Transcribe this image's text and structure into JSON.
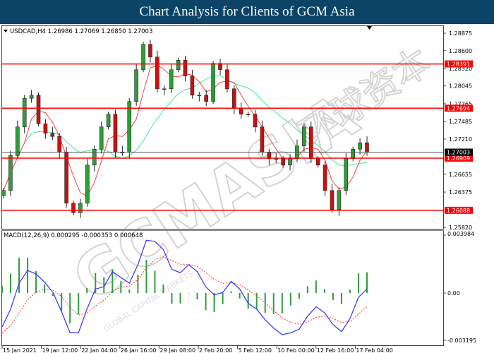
{
  "header": {
    "title": "Chart Analysis for Clients of GCM Asia"
  },
  "watermark": {
    "text": "GCMASIA",
    "subtext": "GLOBAL CAPITAL MARKETS",
    "script_text": "环球资本"
  },
  "chart_data": [
    {
      "type": "candlestick",
      "title": "USDCAD,H4",
      "ohlc_label": "1.26986 1.27069 1.26850 1.27003",
      "symbol": "USDCAD",
      "timeframe": "H4",
      "ylim": [
        1.2575,
        1.2898
      ],
      "y_ticks": [
        "1.28875",
        "1.28600",
        "1.28320",
        "1.28045",
        "1.27765",
        "1.27485",
        "1.27210",
        "1.26655",
        "1.26375",
        "1.25820"
      ],
      "x_ticks": [
        "15 Jan 2021",
        "19 Jan 12:00",
        "22 Jan 04:00",
        "26 Jan 16:00",
        "29 Jan 08:00",
        "2 Feb 20:00",
        "5 Feb 12:00",
        "10 Feb 00:00",
        "12 Feb 16:00",
        "17 Feb 04:00"
      ],
      "closes": [
        1.264,
        1.2695,
        1.274,
        1.2785,
        1.279,
        1.2745,
        1.273,
        1.2725,
        1.27,
        1.262,
        1.2605,
        1.262,
        1.268,
        1.2705,
        1.274,
        1.276,
        1.27,
        1.27,
        1.278,
        1.283,
        1.287,
        1.285,
        1.28,
        1.28,
        1.283,
        1.2845,
        1.282,
        1.279,
        1.279,
        1.278,
        1.284,
        1.283,
        1.28,
        1.277,
        1.276,
        1.276,
        1.274,
        1.27,
        1.269,
        1.269,
        1.268,
        1.269,
        1.271,
        1.274,
        1.269,
        1.268,
        1.264,
        1.261,
        1.264,
        1.269,
        1.2705,
        1.2715,
        1.27
      ],
      "current_price": {
        "value": 1.27003,
        "label": "1.27003",
        "color": "#000000"
      },
      "levels": [
        {
          "value": 1.28391,
          "label": "1.28391"
        },
        {
          "value": 1.27694,
          "label": "1.27694"
        },
        {
          "value": 1.26909,
          "label": "1.26909"
        },
        {
          "value": 1.26088,
          "label": "1.26088"
        }
      ],
      "colors": {
        "bull": "#2e9e3a",
        "bear": "#cc1010",
        "level": "#ff0000",
        "ma_fast": "#ff4040",
        "ma_slow": "#3ee890"
      }
    },
    {
      "type": "line",
      "title": "MACD(12,26,9)",
      "values_label": "0.000295 -0.000353 0.000648",
      "ylim": [
        -0.0034,
        0.0044
      ],
      "y_ticks": [
        "0.003984",
        "0.00",
        "-0.003195"
      ],
      "macd": [
        -0.00229,
        -0.00109,
        0.00067,
        0.00155,
        0.00131,
        0.00075,
        3e-05,
        -0.00125,
        -0.00269,
        -0.00269,
        -0.00109,
        0.00027,
        0.00043,
        0.00147,
        0.00107,
        0.00067,
        0.00195,
        0.00363,
        0.00355,
        0.00299,
        0.00163,
        0.00139,
        0.00195,
        0.00147,
        0.00043,
        -0.00013,
        3e-05,
        0.0008,
        0.00027,
        -0.00069,
        -0.00109,
        -0.00181,
        -0.00237,
        -0.00282,
        -0.00269,
        -0.00245,
        -0.00157,
        -0.00093,
        -0.00133,
        -0.00213,
        -0.00261,
        -0.00173,
        -0.00029,
        0.00027
      ],
      "colors": {
        "macd": "#3030ff",
        "signal": "#ff3030",
        "histogram": "#2e9e3a"
      }
    }
  ]
}
